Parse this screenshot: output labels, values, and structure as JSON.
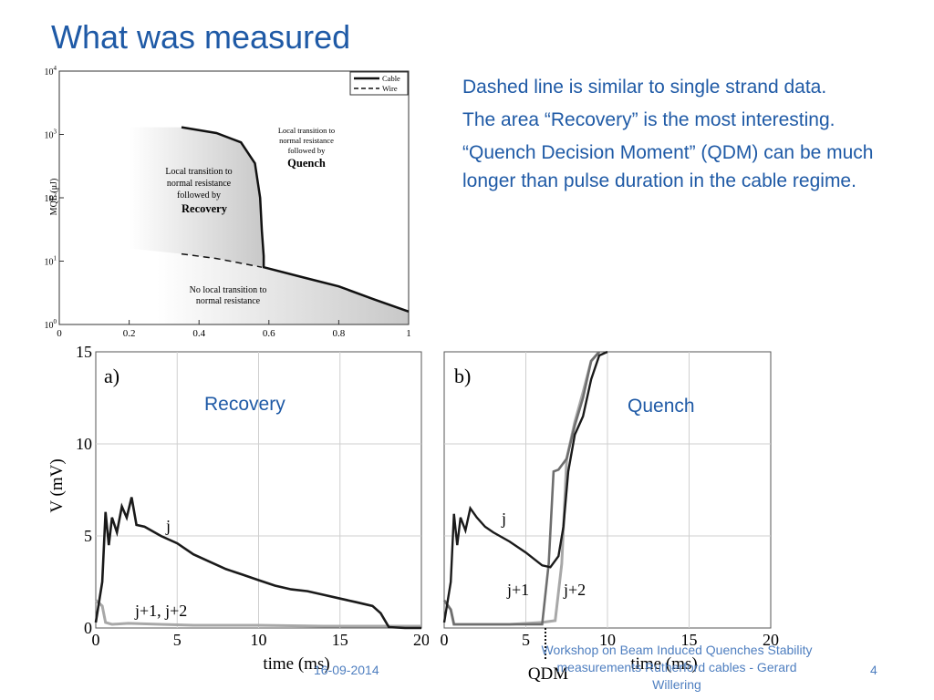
{
  "slide": {
    "title": "What was measured",
    "bullets": [
      "Dashed line is similar to single strand data.",
      "The area “Recovery” is the most interesting.",
      "“Quench Decision Moment” (QDM) can be much longer than pulse duration in the cable regime."
    ],
    "recovery_label": "Recovery",
    "quench_label": "Quench",
    "footer_date": "16-09-2014",
    "footer_center": "Workshop on Beam Induced Quenches Stability measurements Rutherford cables - Gerard Willering",
    "page_number": "4"
  },
  "colors": {
    "accent": "#1f5aa6",
    "footer": "#4f7fc0",
    "recovery_trace": "#1a1a1a",
    "other_trace": "#a8a8a8"
  },
  "chart_data": [
    {
      "type": "line",
      "ylabel": "MQE (μJ)",
      "xlim": [
        0,
        1
      ],
      "ylim": [
        1,
        10000
      ],
      "yscale": "log",
      "x_ticks": [
        "0",
        "0.2",
        "0.4",
        "0.6",
        "0.8",
        "1"
      ],
      "y_ticks": [
        "10^0",
        "10^1",
        "10^2",
        "10^3",
        "10^4"
      ],
      "legend": {
        "position": "top-right",
        "entries": [
          "Cable",
          "Wire"
        ]
      },
      "series": [
        {
          "name": "Cable",
          "style": "solid",
          "x": [
            0.35,
            0.45,
            0.52,
            0.56,
            0.575,
            0.58,
            0.585,
            0.585,
            0.7,
            0.8,
            0.9,
            1.0
          ],
          "y": [
            1300,
            1050,
            750,
            350,
            100,
            30,
            12,
            8,
            5.5,
            4,
            2.5,
            1.6
          ]
        },
        {
          "name": "Wire",
          "style": "dashed",
          "x": [
            0.35,
            0.45,
            0.58
          ],
          "y": [
            13,
            11,
            8
          ]
        }
      ],
      "annotations": [
        {
          "lines": [
            "Local transition to",
            "normal resistance",
            "followed by"
          ],
          "bold": "Quench"
        },
        {
          "lines": [
            "Local transition to",
            "normal resistance",
            "followed by"
          ],
          "bold": "Recovery"
        },
        {
          "lines": [
            "No local transition to",
            "normal resistance"
          ]
        }
      ]
    },
    {
      "type": "line",
      "panel_label": "a)",
      "xlabel": "time (ms)",
      "ylabel": "V (mV)",
      "xlim": [
        0,
        20
      ],
      "ylim": [
        0,
        15
      ],
      "x_ticks": [
        "0",
        "5",
        "10",
        "15",
        "20"
      ],
      "y_ticks": [
        "0",
        "5",
        "10",
        "15"
      ],
      "series": [
        {
          "name": "j",
          "color": "#1a1a1a",
          "x": [
            0,
            0.4,
            0.6,
            0.8,
            1.0,
            1.3,
            1.6,
            1.9,
            2.2,
            2.5,
            3,
            4,
            5,
            6,
            7,
            8,
            9,
            10,
            11,
            12,
            13,
            14,
            15,
            16,
            17,
            17.5,
            18,
            19,
            20
          ],
          "y": [
            0.3,
            2.5,
            6.3,
            4.5,
            6.0,
            5.2,
            6.6,
            6.0,
            7.1,
            5.6,
            5.5,
            5.0,
            4.6,
            4.0,
            3.6,
            3.2,
            2.9,
            2.6,
            2.3,
            2.1,
            2.0,
            1.8,
            1.6,
            1.4,
            1.2,
            0.8,
            0.05,
            0,
            0
          ]
        },
        {
          "name": "j+1, j+2",
          "color": "#a8a8a8",
          "x": [
            0,
            0.4,
            0.6,
            1,
            2,
            4,
            6,
            10,
            14,
            18,
            20
          ],
          "y": [
            1.5,
            1.2,
            0.3,
            0.2,
            0.25,
            0.2,
            0.15,
            0.15,
            0.1,
            0.1,
            0.1
          ]
        }
      ],
      "labels": [
        "j",
        "j+1, j+2"
      ]
    },
    {
      "type": "line",
      "panel_label": "b)",
      "xlabel": "time (ms)",
      "xlim": [
        0,
        20
      ],
      "ylim": [
        0,
        15
      ],
      "x_ticks": [
        "0",
        "5",
        "10",
        "15",
        "20"
      ],
      "marker": {
        "label": "QDM",
        "x": 6.2
      },
      "series": [
        {
          "name": "j",
          "color": "#1a1a1a",
          "x": [
            0,
            0.4,
            0.6,
            0.8,
            1.0,
            1.3,
            1.6,
            2.0,
            2.5,
            3,
            4,
            5,
            6,
            6.5,
            7,
            7.3,
            7.6,
            8,
            8.5,
            9,
            9.5,
            10
          ],
          "y": [
            0.3,
            2.5,
            6.2,
            4.5,
            6.0,
            5.3,
            6.5,
            6.0,
            5.5,
            5.2,
            4.7,
            4.1,
            3.4,
            3.3,
            3.9,
            5.5,
            8.5,
            10.5,
            11.5,
            13.5,
            14.8,
            15
          ]
        },
        {
          "name": "j+1",
          "color": "#6e6e6e",
          "x": [
            0,
            0.4,
            0.6,
            2,
            4,
            6,
            6.4,
            6.7,
            7,
            7.5,
            8,
            8.5,
            9,
            9.5
          ],
          "y": [
            1.5,
            1.0,
            0.2,
            0.2,
            0.2,
            0.2,
            3.5,
            8.5,
            8.6,
            9.2,
            11,
            12.5,
            14.5,
            15
          ]
        },
        {
          "name": "j+2",
          "color": "#a8a8a8",
          "x": [
            0,
            0.4,
            0.6,
            2,
            4,
            6,
            6.8,
            7.2,
            7.5,
            8,
            8.5,
            9,
            9.5
          ],
          "y": [
            1.5,
            1.0,
            0.2,
            0.2,
            0.2,
            0.3,
            0.4,
            3.5,
            9.2,
            11.2,
            12.8,
            14.5,
            15
          ]
        }
      ],
      "labels": [
        "j",
        "j+1",
        "j+2"
      ]
    }
  ]
}
